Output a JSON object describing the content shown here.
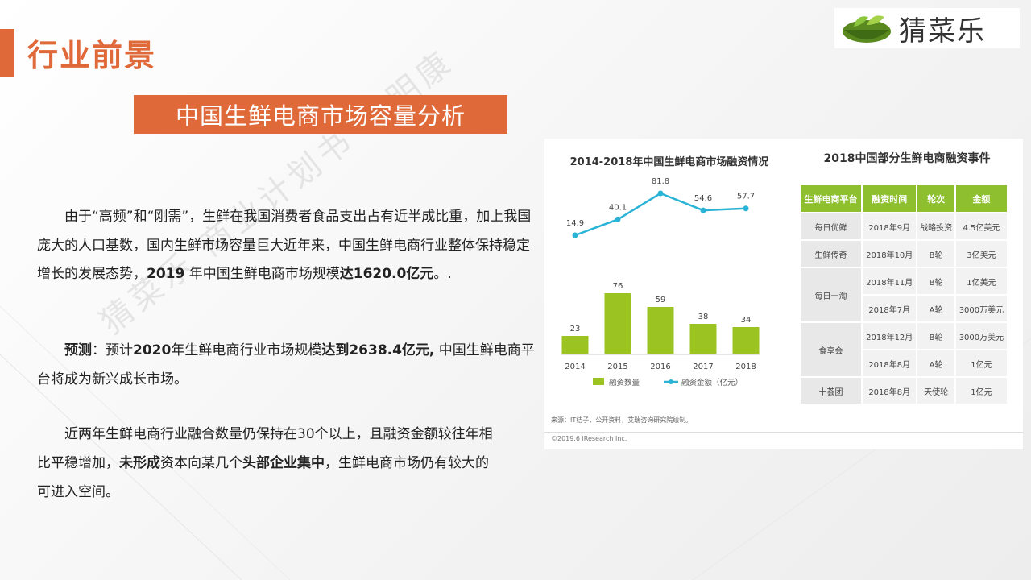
{
  "page": {
    "title": "行业前景",
    "subtitle": "中国生鲜电商市场容量分析",
    "logo_text": "猜菜乐",
    "watermark": "猜菜乐 商业计划书 王明康",
    "colors": {
      "accent": "#e0693a",
      "bar": "#9bc423",
      "line": "#29b3d6",
      "table_header": "#8dbf2e"
    }
  },
  "text": {
    "p1_a": "由于“高频”和“刚需”，生鲜在我国消费者食品支出占有近半成比重，加上我国庞大的人口基数，国内生鲜市场容量巨大近年来，中国生鲜电商行业整体保持稳定增长的发展态势，",
    "p1_b": "2019",
    "p1_c": " 年中国生鲜电商市场规模",
    "p1_d": "达1620.0亿元",
    "p1_e": "。.",
    "p2_a": "预测",
    "p2_b": "：预计",
    "p2_c": "2020",
    "p2_d": "年生鲜电商行业市场规模",
    "p2_e": "达到2638.4亿元,",
    "p2_f": " 中国生鲜电商平台将成为新兴成长市场。",
    "p3_a": "近两年生鲜电商行业融合数量仍保持在30个以上，且融资金额较往年相比平稳增加，",
    "p3_b": "未形成",
    "p3_c": "资本向某几个",
    "p3_d": "头部企业集中",
    "p3_e": "，生鲜电商市场仍有较大的可进入空间。"
  },
  "chart_data": {
    "type": "bar",
    "title": "2014-2018年中国生鲜电商市场融资情况",
    "categories": [
      "2014",
      "2015",
      "2016",
      "2017",
      "2018"
    ],
    "series": [
      {
        "name": "融资数量",
        "type": "bar",
        "values": [
          23,
          76,
          59,
          38,
          34
        ]
      },
      {
        "name": "融资金额（亿元）",
        "type": "line",
        "values": [
          14.9,
          40.1,
          81.8,
          54.6,
          57.7
        ]
      }
    ],
    "legend": "bottom",
    "grid": false
  },
  "panel": {
    "source": "来源：IT桔子，公开资料，艾瑞咨询研究院绘制。",
    "footer": "©2019.6 iResearch Inc."
  },
  "table": {
    "title": "2018中国部分生鲜电商融资事件",
    "headers": [
      "生鲜电商平台",
      "融资时间",
      "轮次",
      "金额"
    ],
    "rows": [
      {
        "platform": "每日优鲜",
        "events": [
          [
            "2018年9月",
            "战略投资",
            "4.5亿美元"
          ]
        ]
      },
      {
        "platform": "生鲜传奇",
        "events": [
          [
            "2018年10月",
            "B轮",
            "3亿美元"
          ]
        ]
      },
      {
        "platform": "每日一淘",
        "events": [
          [
            "2018年11月",
            "B轮",
            "1亿美元"
          ],
          [
            "2018年7月",
            "A轮",
            "3000万美元"
          ]
        ]
      },
      {
        "platform": "食享会",
        "events": [
          [
            "2018年12月",
            "B轮",
            "3000万美元"
          ],
          [
            "2018年8月",
            "A轮",
            "1亿元"
          ]
        ]
      },
      {
        "platform": "十荟团",
        "events": [
          [
            "2018年8月",
            "天使轮",
            "1亿元"
          ]
        ]
      }
    ]
  }
}
